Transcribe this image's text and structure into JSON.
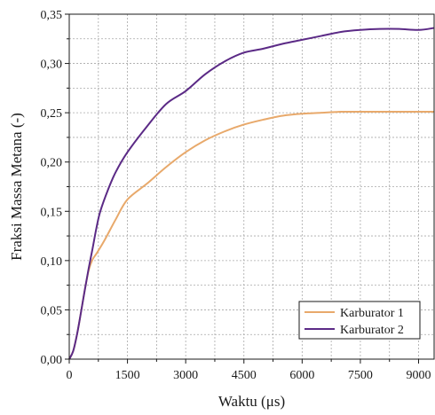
{
  "chart_data": {
    "type": "line",
    "xlabel": "Waktu (μs)",
    "ylabel": "Fraksi Massa Metana (-)",
    "xlim": [
      0,
      9400
    ],
    "ylim": [
      0,
      0.35
    ],
    "x_ticks": [
      0,
      1500,
      3000,
      4500,
      6000,
      7500,
      9000
    ],
    "x_tick_labels": [
      "0",
      "1500",
      "3000",
      "4500",
      "6000",
      "7500",
      "9000"
    ],
    "y_ticks": [
      0,
      0.05,
      0.1,
      0.15,
      0.2,
      0.25,
      0.3,
      0.35
    ],
    "y_tick_labels": [
      "0,00",
      "0,05",
      "0,10",
      "0,15",
      "0,20",
      "0,25",
      "0,30",
      "0,35"
    ],
    "grid": true,
    "legend_position": "bottom-right",
    "series": [
      {
        "name": "Karburator 1",
        "color": "#E8A96B",
        "x": [
          0,
          100,
          200,
          300,
          400,
          500,
          600,
          700,
          900,
          1200,
          1500,
          2000,
          2500,
          3000,
          3500,
          4000,
          4500,
          5000,
          5500,
          6000,
          6500,
          7000,
          7500,
          8000,
          8500,
          9000,
          9400
        ],
        "y": [
          0,
          0.008,
          0.025,
          0.047,
          0.07,
          0.09,
          0.101,
          0.107,
          0.12,
          0.142,
          0.162,
          0.178,
          0.195,
          0.21,
          0.222,
          0.231,
          0.238,
          0.243,
          0.247,
          0.249,
          0.25,
          0.251,
          0.251,
          0.251,
          0.251,
          0.251,
          0.251
        ]
      },
      {
        "name": "Karburator 2",
        "color": "#5B2A86",
        "x": [
          0,
          100,
          200,
          300,
          400,
          500,
          600,
          700,
          800,
          1000,
          1200,
          1500,
          2000,
          2500,
          3000,
          3500,
          4000,
          4500,
          5000,
          5500,
          6000,
          6500,
          7000,
          7500,
          8000,
          8500,
          9000,
          9400
        ],
        "y": [
          0,
          0.008,
          0.025,
          0.047,
          0.07,
          0.092,
          0.112,
          0.133,
          0.15,
          0.172,
          0.19,
          0.21,
          0.236,
          0.259,
          0.272,
          0.289,
          0.302,
          0.311,
          0.315,
          0.32,
          0.324,
          0.328,
          0.332,
          0.334,
          0.335,
          0.335,
          0.334,
          0.336
        ]
      }
    ]
  }
}
